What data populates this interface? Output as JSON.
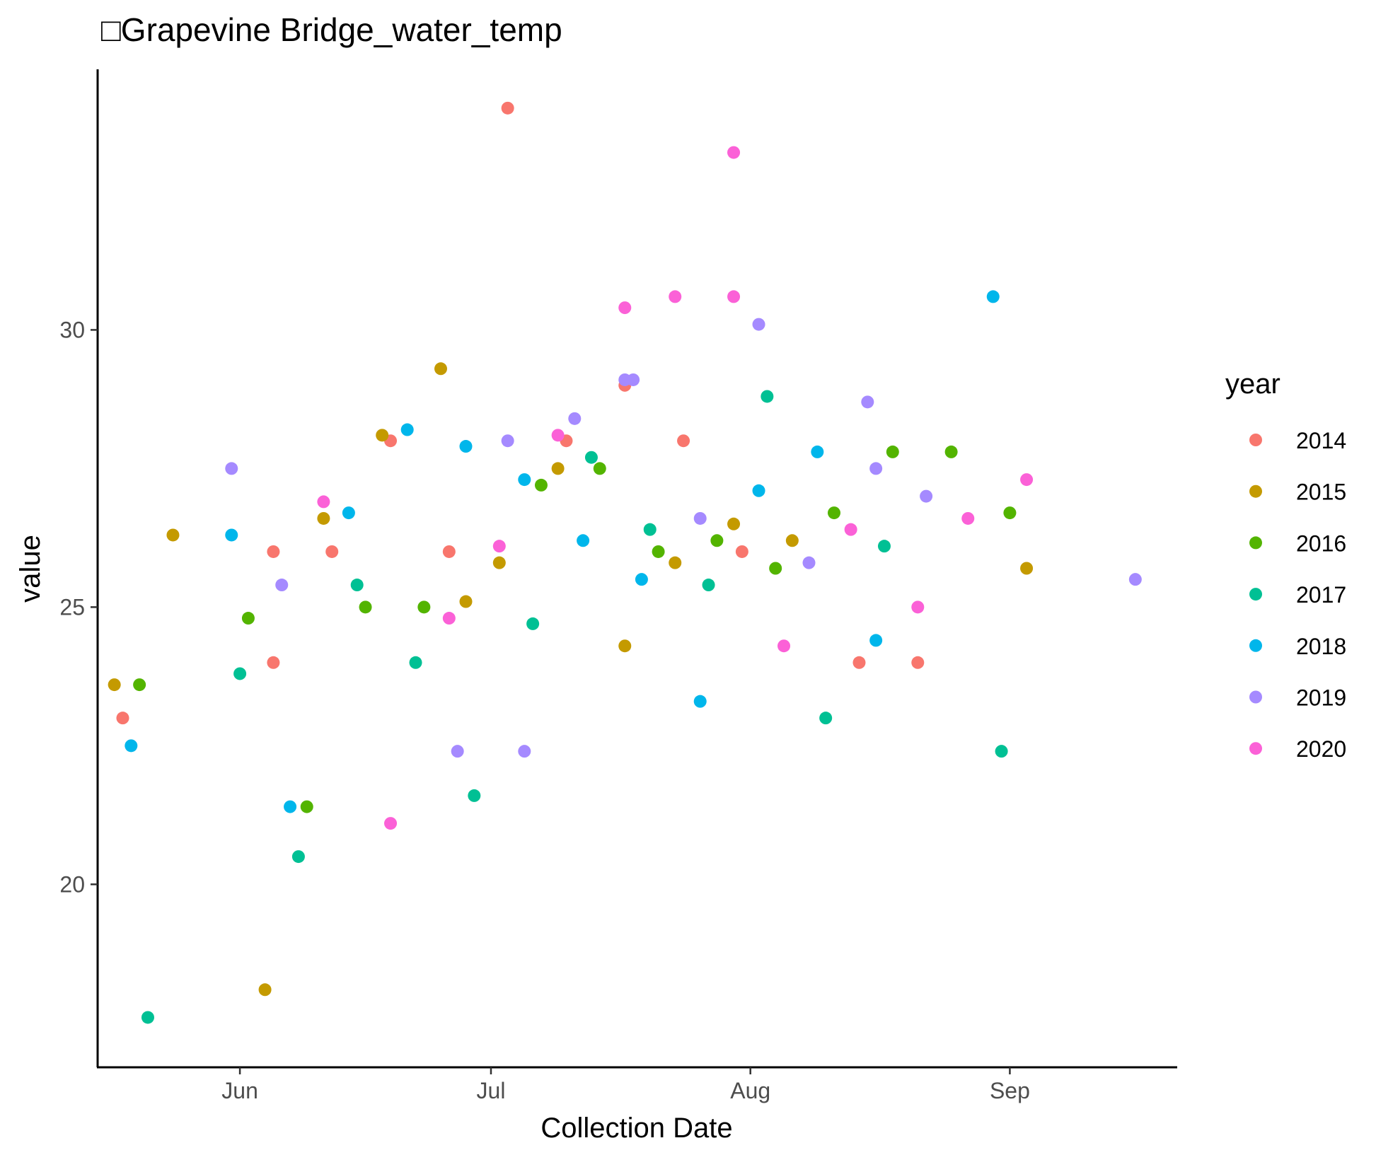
{
  "chart_data": {
    "type": "scatter",
    "title": "□Grapevine Bridge_water_temp",
    "xlabel": "Collection Date",
    "ylabel": "value",
    "xlim": [
      "2000-05-15",
      "2000-09-21"
    ],
    "ylim": [
      16.7,
      34.7
    ],
    "x_ticks": [
      {
        "date": "2000-06-01",
        "label": "Jun"
      },
      {
        "date": "2000-07-01",
        "label": "Jul"
      },
      {
        "date": "2000-08-01",
        "label": "Aug"
      },
      {
        "date": "2000-09-01",
        "label": "Sep"
      }
    ],
    "y_ticks": [
      20,
      25,
      30
    ],
    "grid": false,
    "legend": {
      "title": "year",
      "position": "right"
    },
    "series": [
      {
        "name": "2014",
        "color": "#F8766D",
        "points": [
          {
            "x": "2000-05-18",
            "y": 23.0
          },
          {
            "x": "2000-06-05",
            "y": 26.0
          },
          {
            "x": "2000-06-05",
            "y": 24.0
          },
          {
            "x": "2000-06-12",
            "y": 26.0
          },
          {
            "x": "2000-06-19",
            "y": 28.0
          },
          {
            "x": "2000-06-26",
            "y": 26.0
          },
          {
            "x": "2000-07-03",
            "y": 34.0
          },
          {
            "x": "2000-07-10",
            "y": 28.0
          },
          {
            "x": "2000-07-17",
            "y": 29.0
          },
          {
            "x": "2000-07-24",
            "y": 28.0
          },
          {
            "x": "2000-07-31",
            "y": 26.0
          },
          {
            "x": "2000-08-14",
            "y": 24.0
          },
          {
            "x": "2000-08-21",
            "y": 24.0
          }
        ]
      },
      {
        "name": "2015",
        "color": "#C49A00",
        "points": [
          {
            "x": "2000-05-17",
            "y": 23.6
          },
          {
            "x": "2000-05-24",
            "y": 26.3
          },
          {
            "x": "2000-06-04",
            "y": 18.1
          },
          {
            "x": "2000-06-11",
            "y": 26.6
          },
          {
            "x": "2000-06-18",
            "y": 28.1
          },
          {
            "x": "2000-06-25",
            "y": 29.3
          },
          {
            "x": "2000-06-28",
            "y": 25.1
          },
          {
            "x": "2000-07-02",
            "y": 25.8
          },
          {
            "x": "2000-07-09",
            "y": 27.5
          },
          {
            "x": "2000-07-17",
            "y": 24.3
          },
          {
            "x": "2000-07-23",
            "y": 25.8
          },
          {
            "x": "2000-07-30",
            "y": 26.5
          },
          {
            "x": "2000-08-06",
            "y": 26.2
          },
          {
            "x": "2000-09-03",
            "y": 25.7
          }
        ]
      },
      {
        "name": "2016",
        "color": "#53B400",
        "points": [
          {
            "x": "2000-05-20",
            "y": 23.6
          },
          {
            "x": "2000-06-02",
            "y": 24.8
          },
          {
            "x": "2000-06-09",
            "y": 21.4
          },
          {
            "x": "2000-06-16",
            "y": 25.0
          },
          {
            "x": "2000-06-23",
            "y": 25.0
          },
          {
            "x": "2000-07-07",
            "y": 27.2
          },
          {
            "x": "2000-07-14",
            "y": 27.5
          },
          {
            "x": "2000-07-21",
            "y": 26.0
          },
          {
            "x": "2000-07-28",
            "y": 26.2
          },
          {
            "x": "2000-08-04",
            "y": 25.7
          },
          {
            "x": "2000-08-11",
            "y": 26.7
          },
          {
            "x": "2000-08-18",
            "y": 27.8
          },
          {
            "x": "2000-08-25",
            "y": 27.8
          },
          {
            "x": "2000-09-01",
            "y": 26.7
          }
        ]
      },
      {
        "name": "2017",
        "color": "#00C094",
        "points": [
          {
            "x": "2000-05-21",
            "y": 17.6
          },
          {
            "x": "2000-06-01",
            "y": 23.8
          },
          {
            "x": "2000-06-08",
            "y": 20.5
          },
          {
            "x": "2000-06-15",
            "y": 25.4
          },
          {
            "x": "2000-06-22",
            "y": 24.0
          },
          {
            "x": "2000-06-29",
            "y": 21.6
          },
          {
            "x": "2000-07-06",
            "y": 24.7
          },
          {
            "x": "2000-07-13",
            "y": 27.7
          },
          {
            "x": "2000-07-20",
            "y": 26.4
          },
          {
            "x": "2000-07-27",
            "y": 25.4
          },
          {
            "x": "2000-08-03",
            "y": 28.8
          },
          {
            "x": "2000-08-10",
            "y": 23.0
          },
          {
            "x": "2000-08-17",
            "y": 26.1
          },
          {
            "x": "2000-08-31",
            "y": 22.4
          }
        ]
      },
      {
        "name": "2018",
        "color": "#00B6EB",
        "points": [
          {
            "x": "2000-05-19",
            "y": 22.5
          },
          {
            "x": "2000-05-31",
            "y": 26.3
          },
          {
            "x": "2000-06-07",
            "y": 21.4
          },
          {
            "x": "2000-06-14",
            "y": 26.7
          },
          {
            "x": "2000-06-21",
            "y": 28.2
          },
          {
            "x": "2000-06-28",
            "y": 27.9
          },
          {
            "x": "2000-07-05",
            "y": 27.3
          },
          {
            "x": "2000-07-12",
            "y": 26.2
          },
          {
            "x": "2000-07-19",
            "y": 25.5
          },
          {
            "x": "2000-07-26",
            "y": 23.3
          },
          {
            "x": "2000-08-02",
            "y": 27.1
          },
          {
            "x": "2000-08-09",
            "y": 27.8
          },
          {
            "x": "2000-08-16",
            "y": 24.4
          },
          {
            "x": "2000-08-30",
            "y": 30.6
          }
        ]
      },
      {
        "name": "2019",
        "color": "#A58AFF",
        "points": [
          {
            "x": "2000-05-31",
            "y": 27.5
          },
          {
            "x": "2000-06-06",
            "y": 25.4
          },
          {
            "x": "2000-06-27",
            "y": 22.4
          },
          {
            "x": "2000-07-03",
            "y": 28.0
          },
          {
            "x": "2000-07-05",
            "y": 22.4
          },
          {
            "x": "2000-07-11",
            "y": 28.4
          },
          {
            "x": "2000-07-17",
            "y": 29.1
          },
          {
            "x": "2000-07-18",
            "y": 29.1
          },
          {
            "x": "2000-07-26",
            "y": 26.6
          },
          {
            "x": "2000-08-02",
            "y": 30.1
          },
          {
            "x": "2000-08-08",
            "y": 25.8
          },
          {
            "x": "2000-08-15",
            "y": 28.7
          },
          {
            "x": "2000-08-16",
            "y": 27.5
          },
          {
            "x": "2000-08-22",
            "y": 27.0
          },
          {
            "x": "2000-09-16",
            "y": 25.5
          }
        ]
      },
      {
        "name": "2020",
        "color": "#FB61D7",
        "points": [
          {
            "x": "2000-06-11",
            "y": 26.9
          },
          {
            "x": "2000-06-19",
            "y": 21.1
          },
          {
            "x": "2000-06-26",
            "y": 24.8
          },
          {
            "x": "2000-07-02",
            "y": 26.1
          },
          {
            "x": "2000-07-09",
            "y": 28.1
          },
          {
            "x": "2000-07-17",
            "y": 30.4
          },
          {
            "x": "2000-07-23",
            "y": 30.6
          },
          {
            "x": "2000-07-30",
            "y": 33.2
          },
          {
            "x": "2000-07-30",
            "y": 30.6
          },
          {
            "x": "2000-08-05",
            "y": 24.3
          },
          {
            "x": "2000-08-13",
            "y": 26.4
          },
          {
            "x": "2000-08-21",
            "y": 25.0
          },
          {
            "x": "2000-08-27",
            "y": 26.6
          },
          {
            "x": "2000-09-03",
            "y": 27.3
          }
        ]
      }
    ]
  }
}
